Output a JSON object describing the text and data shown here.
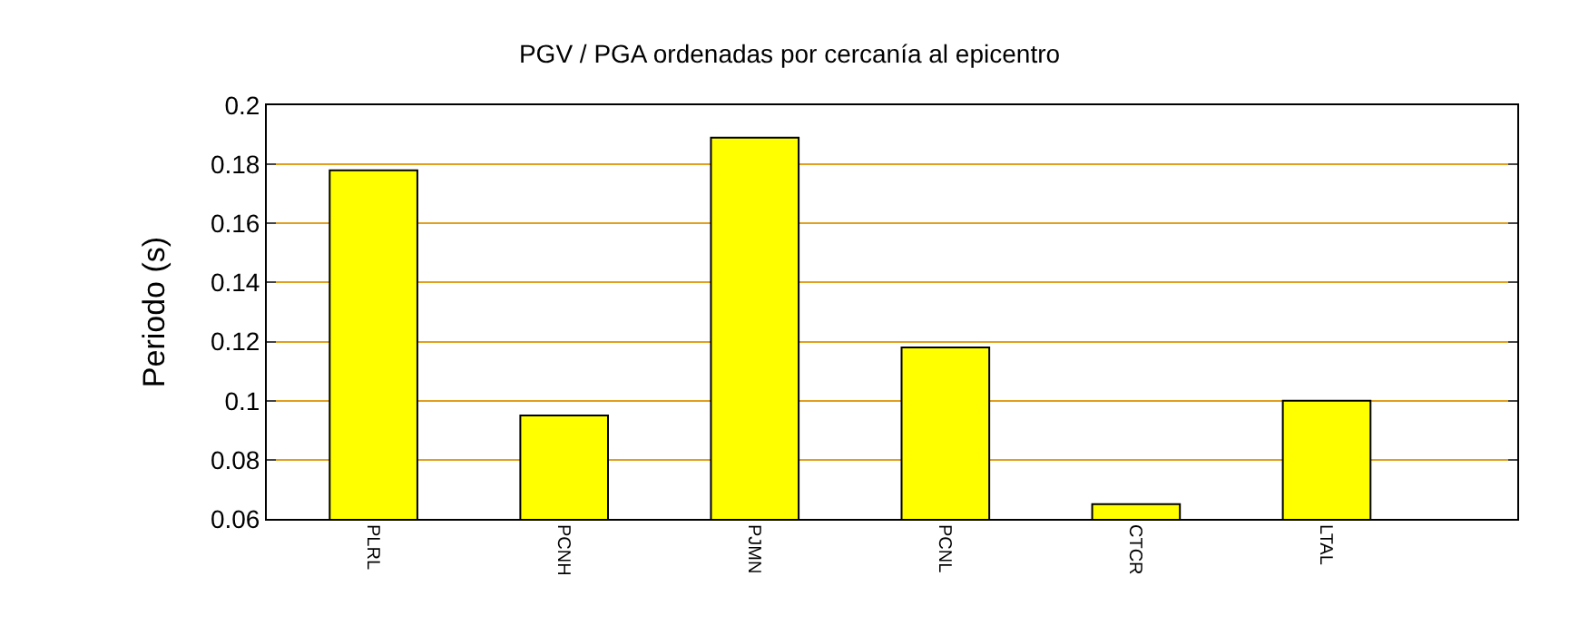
{
  "chart_data": {
    "type": "bar",
    "title": "PGV / PGA ordenadas por cercanía al epicentro",
    "ylabel": "Periodo (s)",
    "categories": [
      "PLRL",
      "PCNH",
      "PJMN",
      "PCNL",
      "CTCR",
      "LTAL"
    ],
    "series": [
      {
        "color": "#ffff00",
        "values": [
          0.178,
          0.095,
          0.189,
          0.118,
          0.065,
          0.1
        ]
      }
    ],
    "ylim": [
      0.06,
      0.2
    ],
    "yticks": [
      0.06,
      0.08,
      0.1,
      0.12,
      0.14,
      0.16,
      0.18,
      0.2
    ],
    "grid": "y",
    "legend": false
  }
}
